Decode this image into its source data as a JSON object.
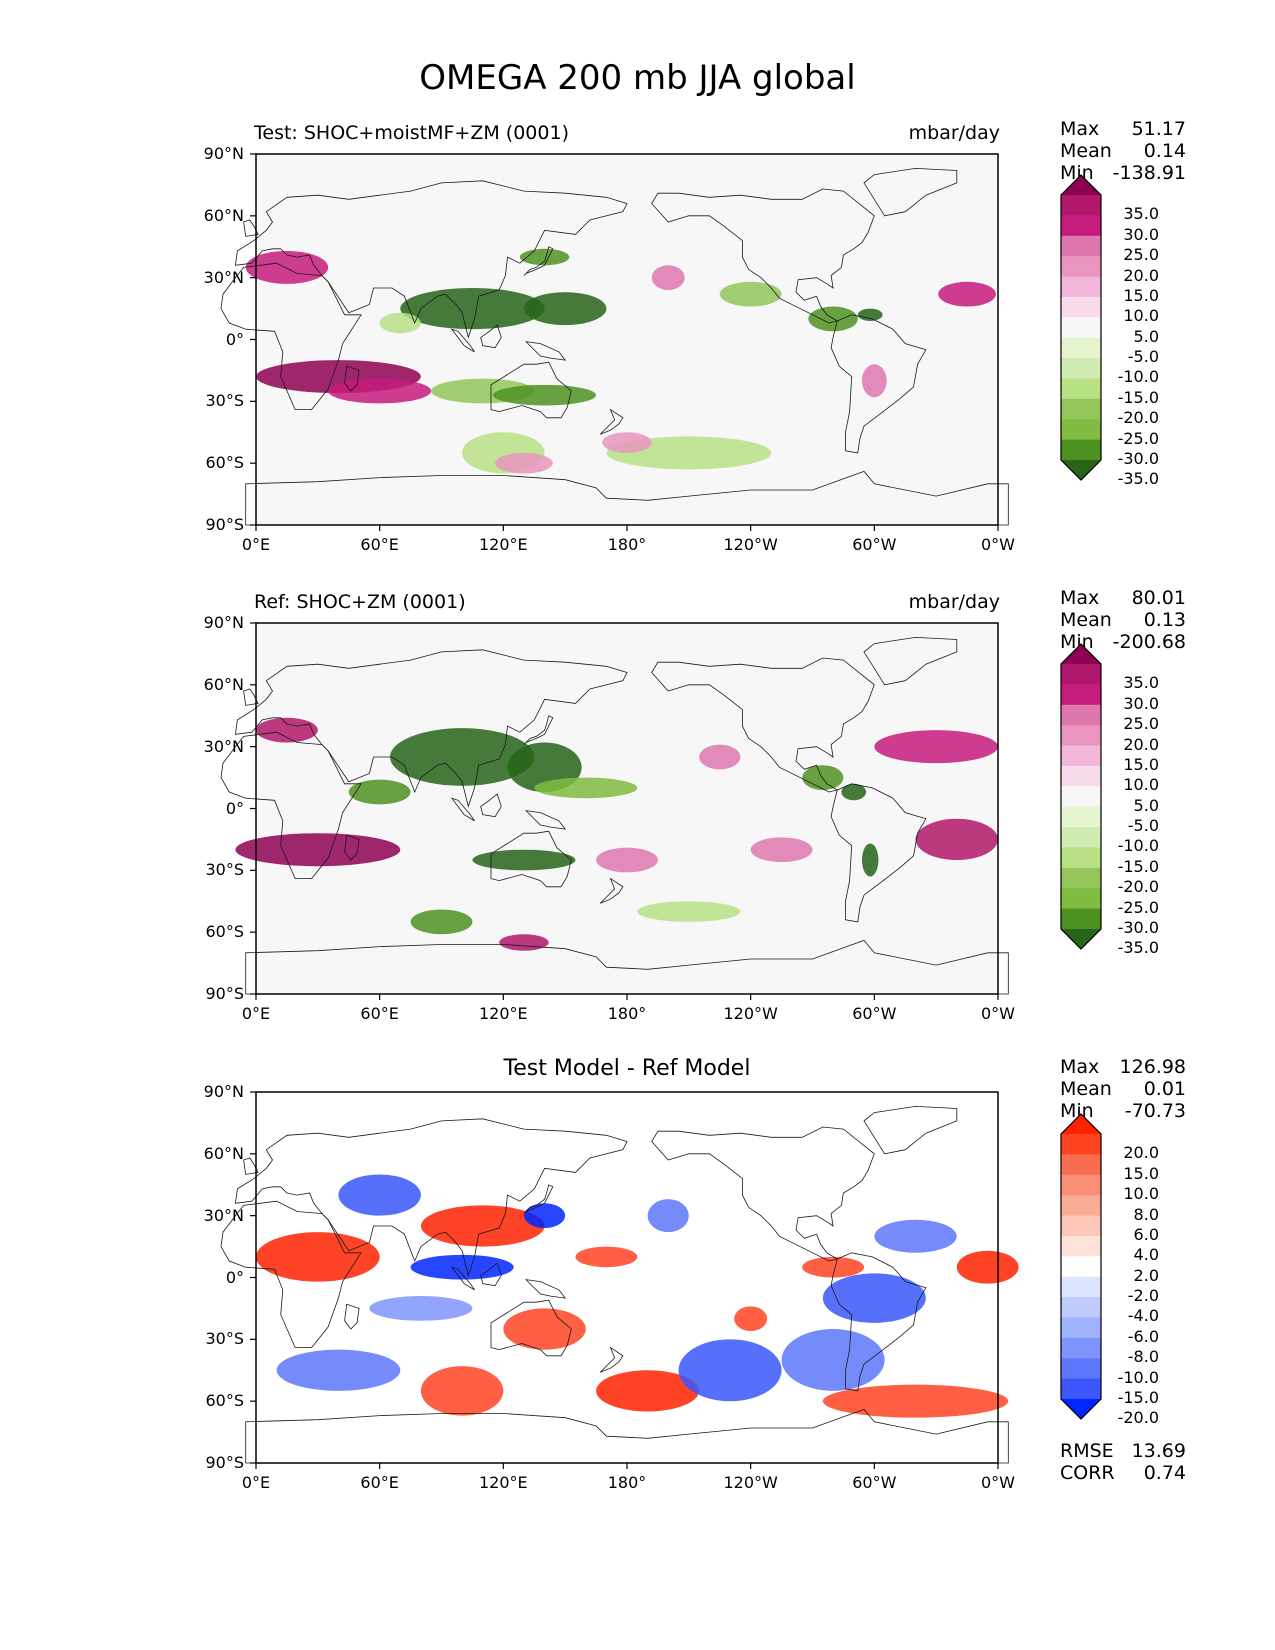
{
  "figure": {
    "title": "OMEGA 200 mb JJA global",
    "colors": {
      "ocean_bg": "#f7f7f7",
      "coast": "#1a1a1a"
    }
  },
  "panels": [
    {
      "id": "test",
      "label": "Test: SHOC+moistMF+ZM (0001)",
      "units": "mbar/day",
      "stats": [
        {
          "label": "Max",
          "value": "51.17"
        },
        {
          "label": "Mean",
          "value": "0.14"
        },
        {
          "label": "Min",
          "value": "-138.91"
        }
      ],
      "colorbar": {
        "labels": [
          "35.0",
          "30.0",
          "25.0",
          "20.0",
          "15.0",
          "10.0",
          "5.0",
          "-5.0",
          "-10.0",
          "-15.0",
          "-20.0",
          "-25.0",
          "-30.0",
          "-35.0"
        ],
        "colors": [
          "#8e0152",
          "#b1186b",
          "#c51b7d",
          "#de77ae",
          "#e995c0",
          "#f1b6da",
          "#f8dceb",
          "#f7f7f7",
          "#e6f5d0",
          "#d0ecb2",
          "#b8e186",
          "#93c55a",
          "#7fbc41",
          "#4d9221",
          "#276419"
        ]
      }
    },
    {
      "id": "ref",
      "label": "Ref: SHOC+ZM (0001)",
      "units": "mbar/day",
      "stats": [
        {
          "label": "Max",
          "value": "80.01"
        },
        {
          "label": "Mean",
          "value": "0.13"
        },
        {
          "label": "Min",
          "value": "-200.68"
        }
      ],
      "colorbar": {
        "labels": [
          "35.0",
          "30.0",
          "25.0",
          "20.0",
          "15.0",
          "10.0",
          "5.0",
          "-5.0",
          "-10.0",
          "-15.0",
          "-20.0",
          "-25.0",
          "-30.0",
          "-35.0"
        ],
        "colors": [
          "#8e0152",
          "#b1186b",
          "#c51b7d",
          "#de77ae",
          "#e995c0",
          "#f1b6da",
          "#f8dceb",
          "#f7f7f7",
          "#e6f5d0",
          "#d0ecb2",
          "#b8e186",
          "#93c55a",
          "#7fbc41",
          "#4d9221",
          "#276419"
        ]
      }
    },
    {
      "id": "diff",
      "title": "Test Model - Ref Model",
      "stats": [
        {
          "label": "Max",
          "value": "126.98"
        },
        {
          "label": "Mean",
          "value": "0.01"
        },
        {
          "label": "Min",
          "value": "-70.73"
        }
      ],
      "metrics": [
        {
          "label": "RMSE",
          "value": "13.69"
        },
        {
          "label": "CORR",
          "value": "0.74"
        }
      ],
      "colorbar": {
        "labels": [
          "20.0",
          "15.0",
          "10.0",
          "8.0",
          "6.0",
          "4.0",
          "2.0",
          "-2.0",
          "-4.0",
          "-6.0",
          "-8.0",
          "-10.0",
          "-15.0",
          "-20.0"
        ],
        "colors": [
          "#ff2200",
          "#ff4422",
          "#f86d50",
          "#fa8f75",
          "#fbac97",
          "#fcc7b8",
          "#fde3da",
          "#ffffff",
          "#dde4fe",
          "#bfcbfd",
          "#a1b2fc",
          "#7f94fb",
          "#5e77fa",
          "#3a57fb",
          "#0026ff"
        ]
      }
    }
  ],
  "axes": {
    "lat_labels": [
      "90°N",
      "60°N",
      "30°N",
      "0°",
      "30°S",
      "60°S",
      "90°S"
    ],
    "lon_labels": [
      "0°E",
      "60°E",
      "120°E",
      "180°",
      "120°W",
      "60°W",
      "0°W"
    ]
  }
}
